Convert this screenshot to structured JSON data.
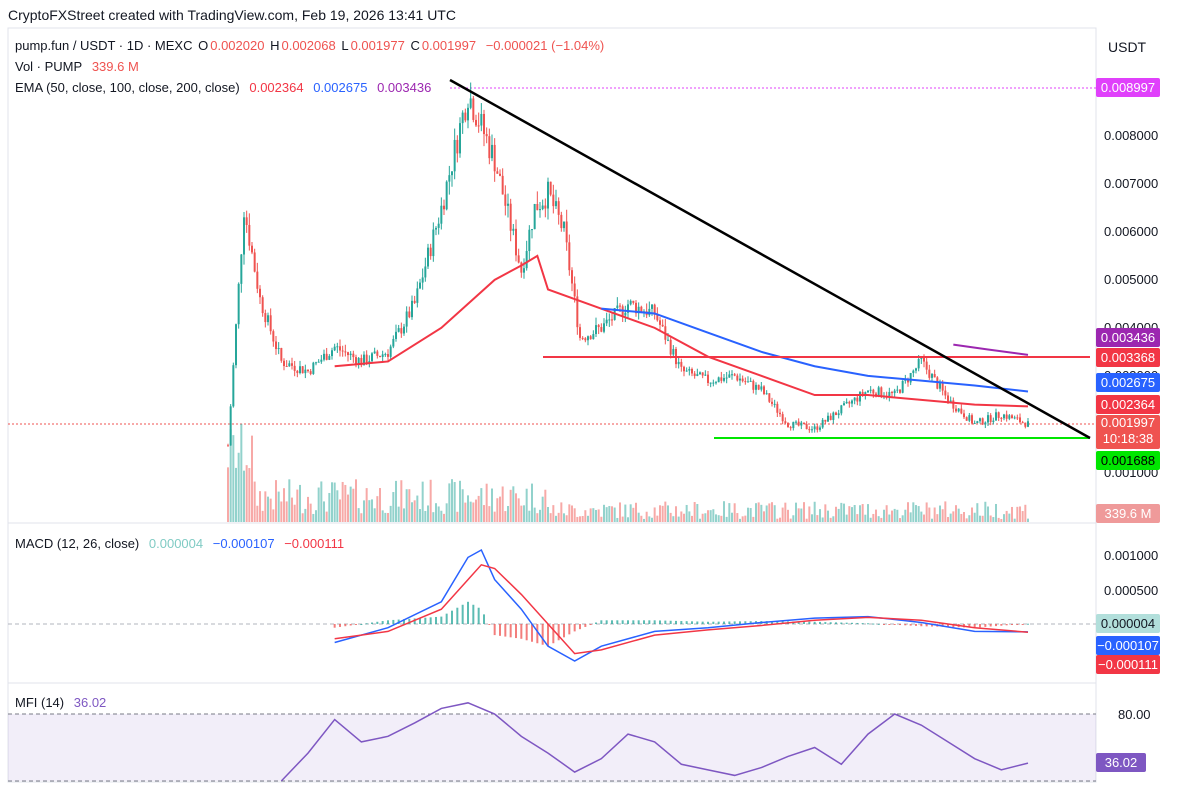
{
  "header": "CryptoFXStreet created with TradingView.com, Feb 19, 2026 13:41 UTC",
  "currency": "USDT",
  "legend": {
    "symbol": "pump.fun / USDT · 1D · MEXC",
    "o_label": "O",
    "o": "0.002020",
    "h_label": "H",
    "h": "0.002068",
    "l_label": "L",
    "l": "0.001977",
    "c_label": "C",
    "c": "0.001997",
    "change": "−0.000021 (−1.04%)",
    "vol_label": "Vol · PUMP",
    "vol": "339.6 M",
    "ema_label": "EMA (50, close, 100, close, 200, close)",
    "ema50": "0.002364",
    "ema100": "0.002675",
    "ema200": "0.003436",
    "macd_label": "MACD (12, 26, close)",
    "macd_hist": "0.000004",
    "macd_line": "−0.000107",
    "macd_signal": "−0.000111",
    "mfi_label": "MFI (14)",
    "mfi": "36.02"
  },
  "price_axis": [
    "0.008000",
    "0.007000",
    "0.006000",
    "0.005000",
    "0.004000",
    "0.003000",
    "0.001000"
  ],
  "macd_axis": [
    "0.001000",
    "0.000500"
  ],
  "mfi_axis": [
    "80.00"
  ],
  "tags": {
    "high": "0.008997",
    "ema200": "0.003436",
    "resistance": "0.003368",
    "ema100": "0.002675",
    "ema50": "0.002364",
    "last": "0.001997",
    "countdown": "10:18:38",
    "support": "0.001688",
    "vol": "339.6 M",
    "macd_hist": "0.000004",
    "macd_line": "−0.000107",
    "macd_signal": "−0.000111",
    "mfi": "36.02"
  },
  "colors": {
    "up": "#26a69a",
    "down": "#ef5350",
    "ema50": "#f23645",
    "ema100": "#2962ff",
    "ema200": "#9c27b0",
    "high": "#e040fb",
    "support": "#00e600",
    "trend": "#000000",
    "resistance": "#f23645",
    "macd": "#2962ff",
    "signal": "#f23645",
    "mfi": "#7e57c2"
  },
  "chart_data": [
    {
      "type": "line",
      "title": "pump.fun / USDT · 1D · MEXC",
      "ylim": [
        0.0009,
        0.0095
      ],
      "series": [
        {
          "name": "close",
          "x": [
            0,
            6,
            12,
            20,
            30,
            40,
            50,
            60,
            70,
            80,
            90,
            100,
            110,
            115,
            120,
            126,
            132,
            140,
            150,
            160,
            170,
            180,
            190,
            200,
            210,
            220,
            230,
            240,
            250,
            260,
            270,
            280,
            290,
            300
          ],
          "values": [
            0.00155,
            0.0065,
            0.0046,
            0.0033,
            0.0031,
            0.0036,
            0.0033,
            0.0035,
            0.0045,
            0.0065,
            0.0089,
            0.0075,
            0.0052,
            0.0065,
            0.0068,
            0.006,
            0.0038,
            0.004,
            0.0045,
            0.0043,
            0.0031,
            0.0029,
            0.003,
            0.0027,
            0.002,
            0.0019,
            0.0023,
            0.0027,
            0.0026,
            0.0033,
            0.0025,
            0.002,
            0.0022,
            0.001997
          ]
        },
        {
          "name": "EMA 50",
          "x": [
            40,
            60,
            80,
            100,
            110,
            116,
            120,
            140,
            160,
            180,
            200,
            220,
            240,
            260,
            280,
            300
          ],
          "values": [
            0.0032,
            0.0033,
            0.004,
            0.005,
            0.0053,
            0.0055,
            0.0048,
            0.0044,
            0.004,
            0.0034,
            0.003,
            0.0026,
            0.0026,
            0.0025,
            0.0024,
            0.002364
          ]
        },
        {
          "name": "EMA 100",
          "x": [
            140,
            160,
            180,
            200,
            220,
            240,
            260,
            280,
            300
          ],
          "values": [
            0.0044,
            0.0043,
            0.0039,
            0.0035,
            0.0032,
            0.003,
            0.0029,
            0.0028,
            0.002675
          ]
        },
        {
          "name": "EMA 200",
          "x": [
            272,
            285,
            300
          ],
          "values": [
            0.00365,
            0.00355,
            0.003436
          ]
        }
      ]
    },
    {
      "type": "bar",
      "title": "MACD (12, 26, close)",
      "series": [
        {
          "name": "MACD",
          "x": [
            40,
            60,
            80,
            90,
            95,
            100,
            110,
            120,
            130,
            140,
            160,
            180,
            200,
            220,
            240,
            260,
            280,
            300
          ],
          "values": [
            -0.00025,
            -5e-05,
            0.0003,
            0.0009,
            0.001,
            0.0006,
            0.0002,
            -0.0003,
            -0.0005,
            -0.0003,
            -0.0001,
            -5e-05,
            2e-05,
            8e-05,
            0.0001,
            2e-05,
            -0.0001,
            -0.000107
          ]
        },
        {
          "name": "Signal",
          "x": [
            40,
            60,
            80,
            90,
            95,
            100,
            110,
            120,
            130,
            140,
            160,
            180,
            200,
            220,
            240,
            260,
            280,
            300
          ],
          "values": [
            -0.0002,
            -0.0001,
            0.0002,
            0.0006,
            0.0008,
            0.00075,
            0.0004,
            0.0,
            -0.0004,
            -0.00035,
            -0.00015,
            -8e-05,
            -2e-05,
            5e-05,
            9e-05,
            5e-05,
            -5e-05,
            -0.000111
          ]
        }
      ]
    },
    {
      "type": "line",
      "title": "MFI (14)",
      "series": [
        {
          "name": "MFI",
          "x": [
            20,
            30,
            40,
            50,
            60,
            70,
            80,
            90,
            100,
            110,
            120,
            130,
            140,
            150,
            160,
            170,
            180,
            190,
            200,
            210,
            220,
            230,
            240,
            250,
            260,
            270,
            280,
            290,
            300
          ],
          "values": [
            20,
            45,
            75,
            55,
            60,
            72,
            85,
            90,
            80,
            60,
            45,
            28,
            40,
            62,
            55,
            35,
            30,
            25,
            32,
            42,
            50,
            35,
            62,
            80,
            70,
            55,
            40,
            30,
            36.02
          ]
        }
      ]
    }
  ]
}
